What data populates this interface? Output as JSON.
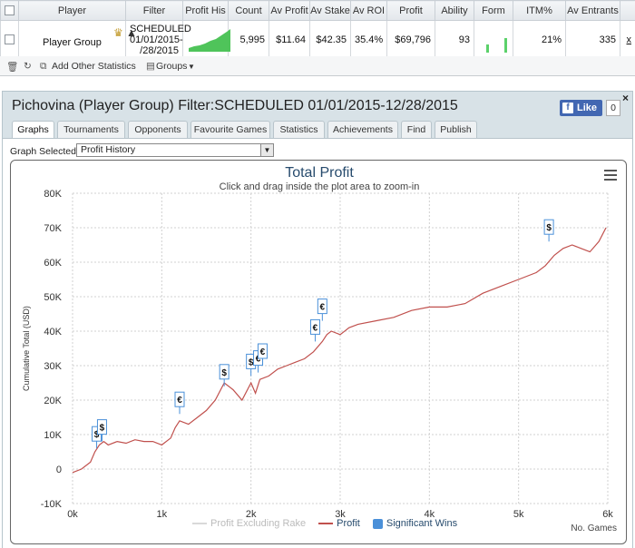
{
  "table": {
    "headers": [
      "",
      "Player",
      "Filter",
      "Profit His",
      "Count",
      "Av Profit",
      "Av Stake",
      "Av ROI",
      "Profit",
      "Ability",
      "Form",
      "ITM%",
      "Av Entrants",
      ""
    ],
    "row": {
      "player": "Player Group",
      "filter": "SCHEDULED 01/01/2015- /28/2015",
      "count": "5,995",
      "av_profit": "$11.64",
      "av_stake": "$42.35",
      "av_roi": "35.4%",
      "profit": "$69,796",
      "ability": "93",
      "itm": "21%",
      "av_entrants": "335",
      "x_link": "x"
    }
  },
  "toolbar": {
    "add_stats": "Add Other Statistics",
    "groups": "Groups"
  },
  "panel": {
    "title": "Pichovina (Player Group) Filter:SCHEDULED 01/01/2015-12/28/2015",
    "like_label": "Like",
    "like_count": "0",
    "close": "×",
    "tabs": [
      "Graphs",
      "Tournaments",
      "Opponents",
      "Favourite Games",
      "Statistics",
      "Achievements",
      "Find",
      "Publish"
    ],
    "graph_selected_label": "Graph Selected:",
    "graph_selected_value": "Profit History"
  },
  "colors": {
    "profit_line": "#c0504d",
    "excl_rake_line": "#d9d9d9",
    "sig_win": "#4a90d9",
    "title": "#274b6d"
  },
  "chart_data": {
    "type": "line",
    "title": "Total Profit",
    "subtitle": "Click and drag inside the plot area to zoom-in",
    "xlabel": "No. Games",
    "ylabel": "Cumulative Total (USD)",
    "xlim": [
      0,
      6000
    ],
    "ylim": [
      -10000,
      80000
    ],
    "x_ticks": [
      "0k",
      "1k",
      "2k",
      "3k",
      "4k",
      "5k",
      "6k"
    ],
    "y_ticks": [
      "-10K",
      "0",
      "10K",
      "20K",
      "30K",
      "40K",
      "50K",
      "60K",
      "70K",
      "80K"
    ],
    "grid": true,
    "legend_position": "bottom",
    "series": [
      {
        "name": "Profit Excluding Rake",
        "x": [],
        "y": []
      },
      {
        "name": "Profit",
        "x": [
          0,
          100,
          200,
          250,
          300,
          350,
          400,
          500,
          600,
          700,
          800,
          900,
          1000,
          1100,
          1150,
          1200,
          1300,
          1400,
          1500,
          1600,
          1700,
          1800,
          1900,
          2000,
          2050,
          2100,
          2200,
          2300,
          2400,
          2500,
          2600,
          2700,
          2800,
          2850,
          2900,
          3000,
          3100,
          3200,
          3400,
          3600,
          3800,
          4000,
          4200,
          4400,
          4600,
          4800,
          5000,
          5200,
          5300,
          5400,
          5500,
          5600,
          5700,
          5800,
          5900,
          5980
        ],
        "y": [
          -1000,
          0,
          2000,
          5000,
          7000,
          8000,
          7000,
          8000,
          7500,
          8500,
          8000,
          8000,
          7000,
          9000,
          12000,
          14000,
          13000,
          15000,
          17000,
          20000,
          25000,
          23000,
          20000,
          25000,
          22000,
          26000,
          27000,
          29000,
          30000,
          31000,
          32000,
          34000,
          37000,
          39000,
          40000,
          39000,
          41000,
          42000,
          43000,
          44000,
          46000,
          47000,
          47000,
          48000,
          51000,
          53000,
          55000,
          57000,
          59000,
          62000,
          64000,
          65000,
          64000,
          63000,
          66000,
          70000
        ]
      }
    ],
    "significant_wins": [
      {
        "x": 270,
        "y": 6000,
        "symbol": "$"
      },
      {
        "x": 330,
        "y": 8000,
        "symbol": "$"
      },
      {
        "x": 1200,
        "y": 16000,
        "symbol": "€"
      },
      {
        "x": 1700,
        "y": 24000,
        "symbol": "$"
      },
      {
        "x": 2000,
        "y": 27000,
        "symbol": "$"
      },
      {
        "x": 2080,
        "y": 28000,
        "symbol": "€"
      },
      {
        "x": 2130,
        "y": 30000,
        "symbol": "€"
      },
      {
        "x": 2720,
        "y": 37000,
        "symbol": "€"
      },
      {
        "x": 2800,
        "y": 43000,
        "symbol": "€"
      },
      {
        "x": 5340,
        "y": 66000,
        "symbol": "$"
      }
    ]
  }
}
